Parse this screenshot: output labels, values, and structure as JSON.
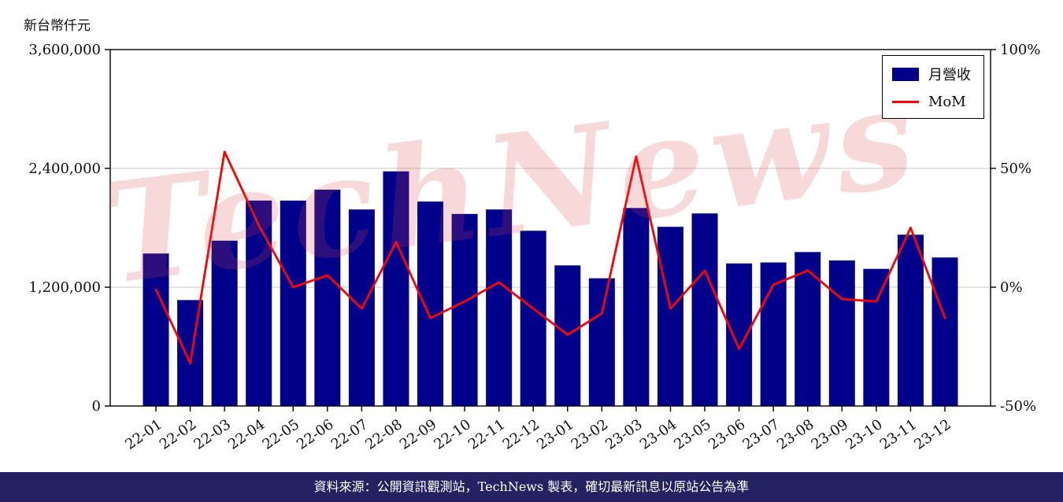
{
  "chart_data": {
    "type": "bar",
    "title": "",
    "y_axis_label": "新台幣仟元",
    "categories": [
      "22-01",
      "22-02",
      "22-03",
      "22-04",
      "22-05",
      "22-06",
      "22-07",
      "22-08",
      "22-09",
      "22-10",
      "22-11",
      "22-12",
      "23-01",
      "23-02",
      "23-03",
      "23-04",
      "23-05",
      "23-06",
      "23-07",
      "23-08",
      "23-09",
      "23-10",
      "23-11",
      "23-12"
    ],
    "series": [
      {
        "name": "月營收",
        "type": "bar",
        "color": "#00008B",
        "axis": "left",
        "values": [
          1540000,
          1070000,
          1670000,
          2075000,
          2075000,
          2185000,
          1985000,
          2370000,
          2065000,
          1940000,
          1985000,
          1770000,
          1420000,
          1290000,
          2000000,
          1810000,
          1945000,
          1440000,
          1450000,
          1555000,
          1470000,
          1385000,
          1730000,
          1500000
        ]
      },
      {
        "name": "MoM",
        "type": "line",
        "color": "#ff0000",
        "axis": "right",
        "values": [
          -1,
          -32,
          57,
          26,
          0,
          5,
          -9,
          19,
          -13,
          -6,
          2,
          -9,
          -20,
          -11,
          55,
          -9,
          7,
          -26,
          1,
          7,
          -5,
          -6,
          25,
          -13
        ]
      }
    ],
    "left_axis": {
      "min": 0,
      "max": 3600000,
      "ticks": [
        0,
        1200000,
        2400000,
        3600000
      ],
      "tick_labels": [
        "0",
        "1,200,000",
        "2,400,000",
        "3,600,000"
      ]
    },
    "right_axis": {
      "min": -50,
      "max": 100,
      "ticks": [
        -50,
        0,
        50,
        100
      ],
      "tick_labels": [
        "-50%",
        "0%",
        "50%",
        "100%"
      ]
    },
    "grid": true,
    "legend_position": "top-right"
  },
  "watermark": "TechNews",
  "footer": {
    "text": "資料來源：公開資訊觀測站，TechNews 製表，確切最新訊息以原站公告為準"
  }
}
